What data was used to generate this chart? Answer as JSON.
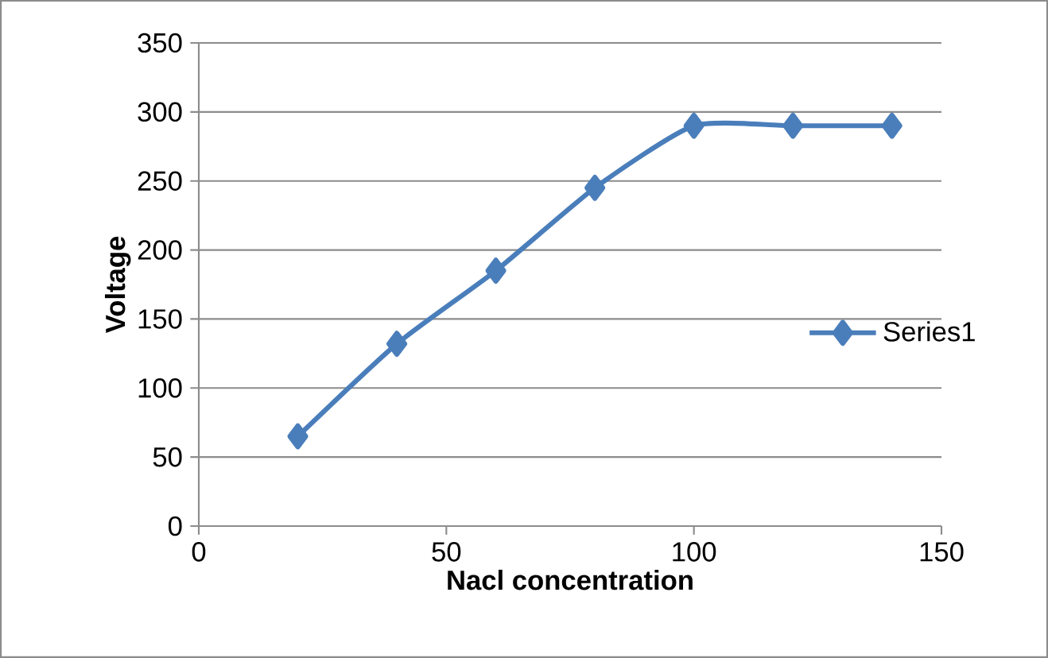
{
  "chart_data": {
    "type": "line",
    "xlabel": "Nacl concentration",
    "ylabel": "Voltage",
    "series": [
      {
        "name": "Series1",
        "color": "#4a7ebb",
        "x": [
          20,
          40,
          60,
          80,
          100,
          120,
          140
        ],
        "values": [
          65,
          132,
          185,
          245,
          290,
          290,
          290
        ]
      }
    ],
    "xlim": [
      0,
      150
    ],
    "xticks": [
      0,
      50,
      100,
      150
    ],
    "ylim": [
      0,
      350
    ],
    "yticks": [
      0,
      50,
      100,
      150,
      200,
      250,
      300,
      350
    ],
    "grid": "y",
    "legend": "right",
    "marker": "diamond",
    "line_style": "solid"
  }
}
